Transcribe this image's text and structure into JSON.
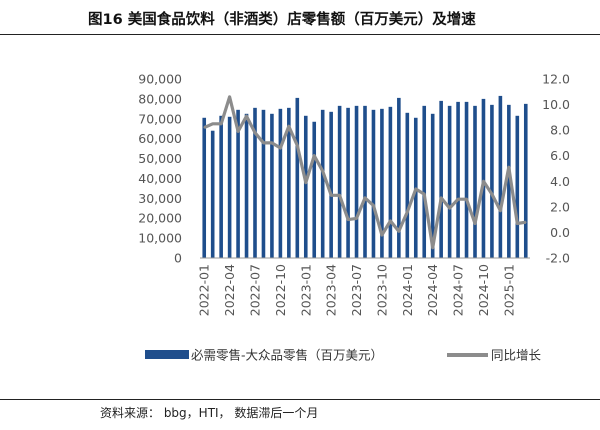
{
  "header": {
    "title": "图16 美国食品饮料（非酒类）店零售额（百万美元）及增速"
  },
  "footer": {
    "source": "资料来源： bbg，HTI， 数据滞后一个月"
  },
  "colors": {
    "bar": "#1f4e8c",
    "line": "#8c8c8c"
  },
  "chart_data": {
    "type": "bar",
    "combo": "bar+line (secondary axis)",
    "x": [
      "2022-01",
      "2022-02",
      "2022-03",
      "2022-04",
      "2022-05",
      "2022-06",
      "2022-07",
      "2022-08",
      "2022-09",
      "2022-10",
      "2022-11",
      "2022-12",
      "2023-01",
      "2023-02",
      "2023-03",
      "2023-04",
      "2023-05",
      "2023-06",
      "2023-07",
      "2023-08",
      "2023-09",
      "2023-10",
      "2023-11",
      "2023-12",
      "2024-01",
      "2024-02",
      "2024-03",
      "2024-04",
      "2024-05",
      "2024-06",
      "2024-07",
      "2024-08",
      "2024-09",
      "2024-10",
      "2024-11",
      "2024-12",
      "2025-01",
      "2025-02",
      "2025-03"
    ],
    "x_tick_labels": [
      "2022-01",
      "2022-04",
      "2022-07",
      "2022-10",
      "2023-01",
      "2023-04",
      "2023-07",
      "2023-10",
      "2024-01",
      "2024-04",
      "2024-07",
      "2024-10",
      "2025-01"
    ],
    "series": [
      {
        "name": "必需零售-大众品零售（百万美元）",
        "type": "bar",
        "axis": "left",
        "values": [
          70500,
          64000,
          71500,
          71000,
          74500,
          72500,
          75500,
          74500,
          72500,
          75000,
          75500,
          80500,
          71500,
          68500,
          74500,
          73500,
          76500,
          75500,
          76500,
          76500,
          74500,
          75000,
          76000,
          80500,
          73000,
          70500,
          76500,
          72500,
          79000,
          76500,
          78500,
          78500,
          76500,
          80000,
          77000,
          81500,
          77000,
          71500,
          77500
        ]
      },
      {
        "name": "同比增长",
        "type": "line",
        "axis": "right",
        "values": [
          8.2,
          8.5,
          8.5,
          10.6,
          7.9,
          9.1,
          7.8,
          7.0,
          7.0,
          6.6,
          8.3,
          6.8,
          3.9,
          6.0,
          4.8,
          2.9,
          2.9,
          1.0,
          1.1,
          2.7,
          2.1,
          -0.2,
          0.9,
          0.1,
          1.6,
          3.4,
          3.0,
          -1.2,
          2.7,
          1.9,
          2.6,
          2.6,
          0.7,
          4.0,
          3.0,
          1.7,
          5.1,
          0.7,
          0.8
        ]
      }
    ],
    "y_left": {
      "ylim": [
        0,
        90000
      ],
      "ticks": [
        "0",
        "10,000",
        "20,000",
        "30,000",
        "40,000",
        "50,000",
        "60,000",
        "70,000",
        "80,000",
        "90,000"
      ]
    },
    "y_right": {
      "ylim": [
        -2.0,
        12.0
      ],
      "ticks": [
        "-2.0",
        "0.0",
        "2.0",
        "4.0",
        "6.0",
        "8.0",
        "10.0",
        "12.0"
      ]
    },
    "grid": false,
    "legend_position": "bottom"
  }
}
